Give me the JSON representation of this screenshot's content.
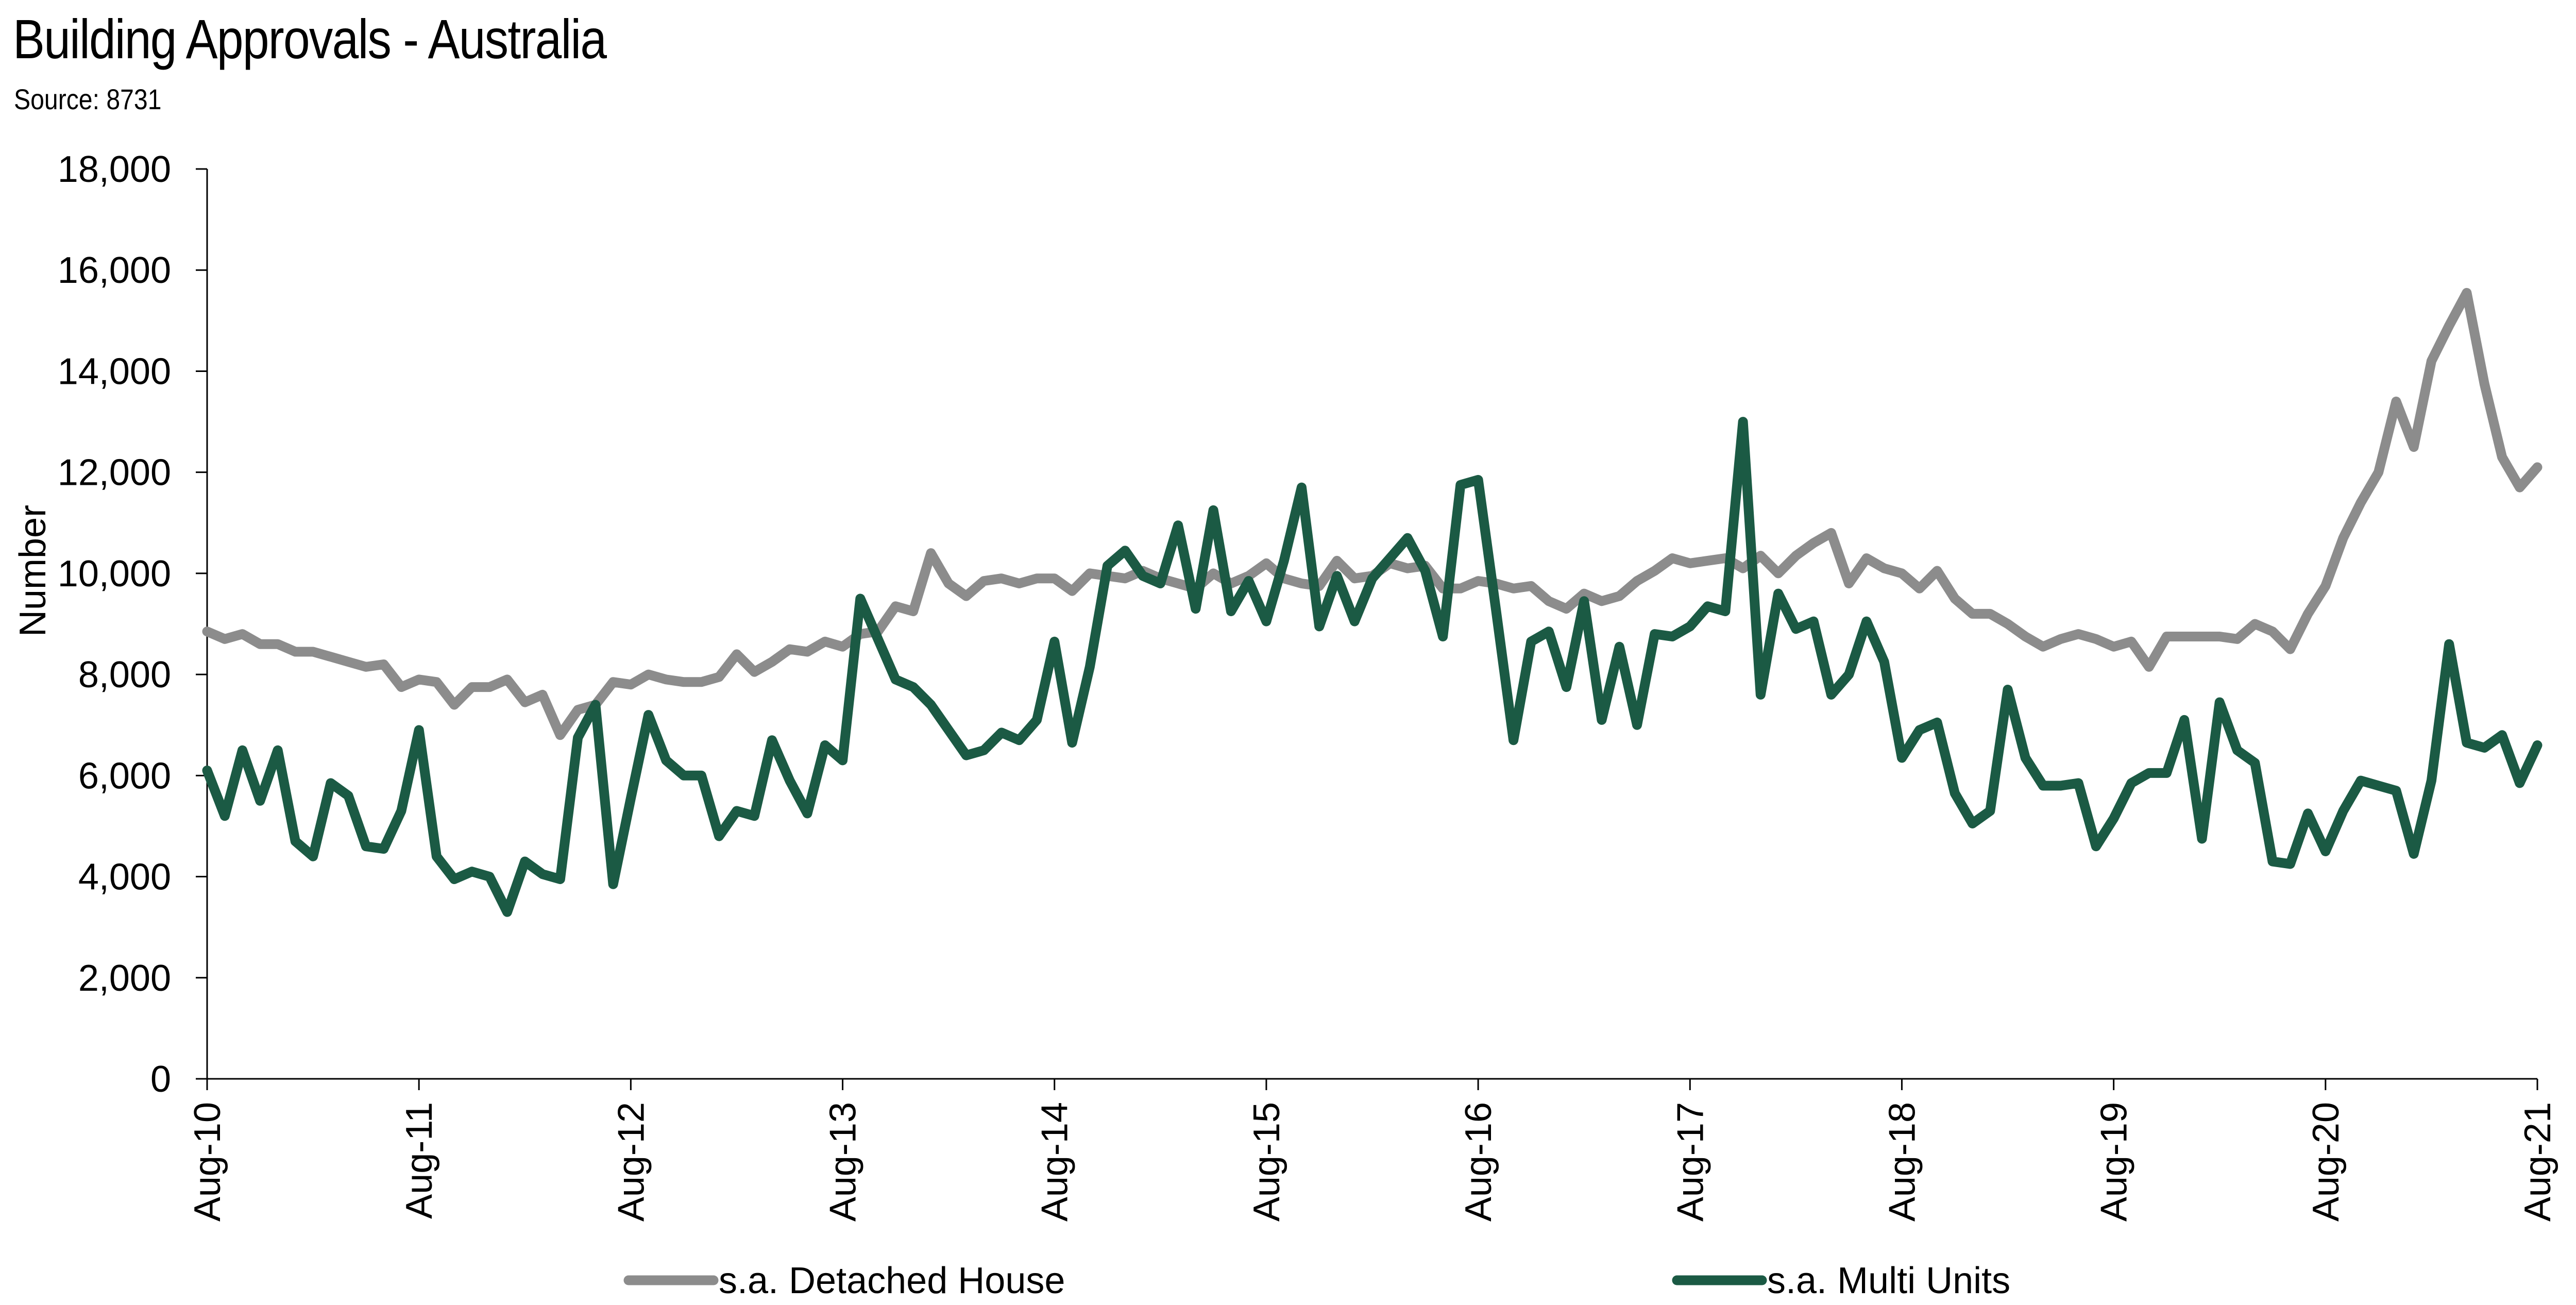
{
  "chart_data": {
    "type": "line",
    "title": "Building Approvals - Australia",
    "subtitle": "Source: 8731",
    "ylabel": "Number",
    "xlabel": "",
    "ylim": [
      0,
      18000
    ],
    "y_ticks": [
      "0",
      "2,000",
      "4,000",
      "6,000",
      "8,000",
      "10,000",
      "12,000",
      "14,000",
      "16,000",
      "18,000"
    ],
    "x_ticks": [
      "Aug-10",
      "Aug-11",
      "Aug-12",
      "Aug-13",
      "Aug-14",
      "Aug-15",
      "Aug-16",
      "Aug-17",
      "Aug-18",
      "Aug-19",
      "Aug-20",
      "Aug-21"
    ],
    "x_start": "Aug-10",
    "x_end": "Aug-21",
    "grid": false,
    "legend_position": "bottom",
    "series": [
      {
        "name": "s.a. Detached House",
        "color": "#8c8c8c",
        "values": [
          8850,
          8700,
          8800,
          8600,
          8600,
          8450,
          8450,
          8350,
          8250,
          8150,
          8200,
          7750,
          7900,
          7850,
          7400,
          7750,
          7750,
          7900,
          7450,
          7600,
          6800,
          7300,
          7400,
          7850,
          7800,
          8000,
          7900,
          7850,
          7850,
          7950,
          8400,
          8050,
          8250,
          8500,
          8450,
          8650,
          8550,
          8800,
          8850,
          9350,
          9250,
          10400,
          9800,
          9550,
          9850,
          9900,
          9800,
          9900,
          9900,
          9650,
          10000,
          9950,
          9900,
          10050,
          9900,
          9800,
          9700,
          10000,
          9800,
          9950,
          10200,
          9900,
          9800,
          9750,
          10250,
          9900,
          9950,
          10200,
          10100,
          10150,
          9700,
          9700,
          9850,
          9800,
          9700,
          9750,
          9450,
          9300,
          9600,
          9450,
          9550,
          9850,
          10050,
          10300,
          10200,
          10250,
          10300,
          10100,
          10350,
          10000,
          10350,
          10600,
          10800,
          9800,
          10300,
          10100,
          10000,
          9700,
          10050,
          9500,
          9200,
          9200,
          9000,
          8750,
          8550,
          8700,
          8800,
          8700,
          8550,
          8650,
          8150,
          8750,
          8750,
          8750,
          8750,
          8700,
          9000,
          8850,
          8500,
          9200,
          9750,
          10700,
          11400,
          12000,
          13400,
          12500,
          14200,
          14900,
          15550,
          13750,
          12300,
          11700,
          12100
        ]
      },
      {
        "name": "s.a. Multi Units",
        "color": "#1b5a44",
        "values": [
          6100,
          5200,
          6500,
          5500,
          6500,
          4700,
          4400,
          5850,
          5600,
          4600,
          4550,
          5300,
          6900,
          4400,
          3950,
          4100,
          4000,
          3300,
          4300,
          4050,
          3950,
          6750,
          7400,
          3850,
          5550,
          7200,
          6300,
          6000,
          6000,
          4800,
          5300,
          5200,
          6700,
          5900,
          5250,
          6600,
          6300,
          9500,
          8700,
          7900,
          7750,
          7400,
          6900,
          6400,
          6500,
          6850,
          6700,
          7100,
          8650,
          6650,
          8150,
          10150,
          10450,
          9950,
          9800,
          10950,
          9300,
          11250,
          9250,
          9850,
          9050,
          10250,
          11700,
          8950,
          9950,
          9050,
          9900,
          10300,
          10700,
          10050,
          8750,
          11750,
          11850,
          9300,
          6700,
          8650,
          8850,
          7750,
          9450,
          7100,
          8550,
          7000,
          8800,
          8750,
          8950,
          9350,
          9250,
          13000,
          7600,
          9600,
          8900,
          9050,
          7600,
          8000,
          9050,
          8250,
          6350,
          6900,
          7050,
          5650,
          5050,
          5300,
          7700,
          6350,
          5800,
          5800,
          5850,
          4600,
          5150,
          5850,
          6050,
          6050,
          7100,
          4750,
          7450,
          6500,
          6250,
          4300,
          4250,
          5250,
          4500,
          5300,
          5900,
          5800,
          5700,
          4450,
          5900,
          8600,
          6650,
          6550,
          6800,
          5850,
          6600
        ]
      }
    ]
  }
}
